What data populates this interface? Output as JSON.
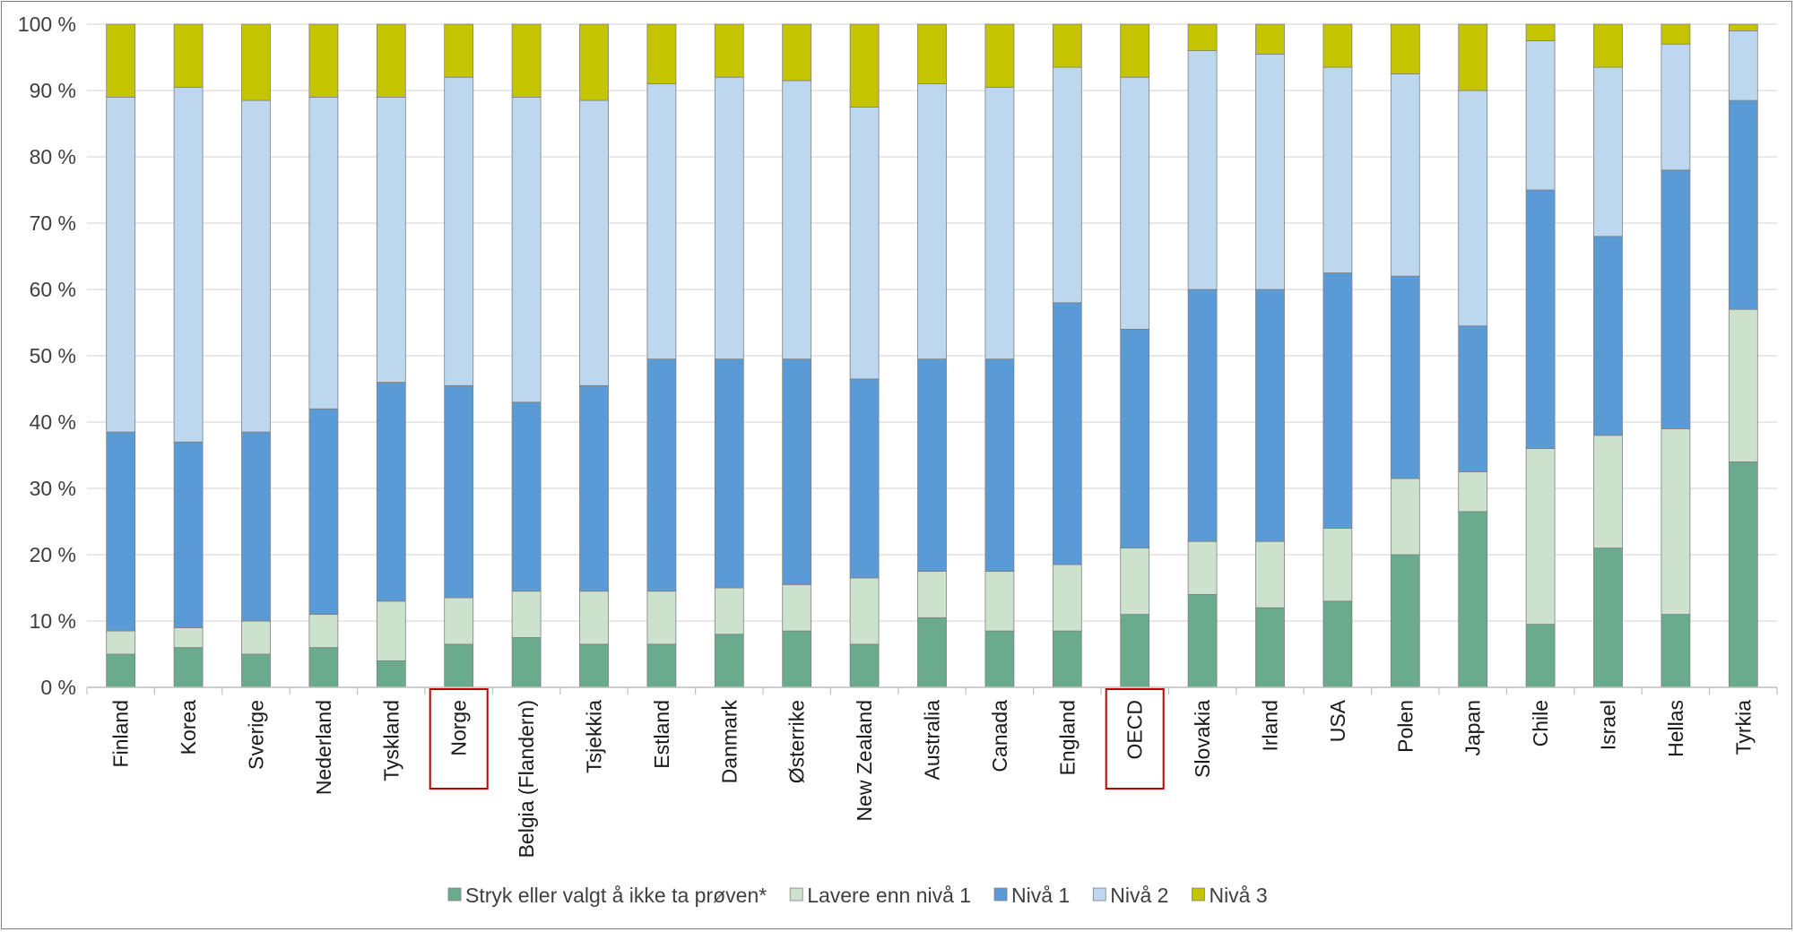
{
  "chart_data": {
    "type": "bar",
    "stacked": true,
    "percent_stacked": true,
    "title": "",
    "xlabel": "",
    "ylabel": "",
    "ylim": [
      0,
      100
    ],
    "y_ticks": [
      "0 %",
      "10 %",
      "20 %",
      "30 %",
      "40 %",
      "50 %",
      "60 %",
      "70 %",
      "80 %",
      "90 %",
      "100 %"
    ],
    "grid": "horizontal",
    "legend_position": "bottom",
    "highlighted_categories": [
      "Norge",
      "OECD"
    ],
    "highlight_color": "#c00000",
    "categories": [
      "Finland",
      "Korea",
      "Sverige",
      "Nederland",
      "Tyskland",
      "Norge",
      "Belgia (Flandern)",
      "Tsjekkia",
      "Estland",
      "Danmark",
      "Østerrike",
      "New Zealand",
      "Australia",
      "Canada",
      "England",
      "OECD",
      "Slovakia",
      "Irland",
      "USA",
      "Polen",
      "Japan",
      "Chile",
      "Israel",
      "Hellas",
      "Tyrkia"
    ],
    "series": [
      {
        "name": "Stryk eller valgt å ikke ta prøven*",
        "color": "#6aab8e",
        "values": [
          5,
          6,
          5,
          6,
          4,
          6.5,
          7.5,
          6.5,
          6.5,
          8,
          8.5,
          6.5,
          10.5,
          8.5,
          8.5,
          11,
          14,
          12,
          13,
          20,
          26.5,
          9.5,
          21,
          11,
          34
        ]
      },
      {
        "name": "Lavere enn nivå 1",
        "color": "#cde2cd",
        "values": [
          3.5,
          3,
          5,
          5,
          9,
          7,
          7,
          8,
          8,
          7,
          7,
          10,
          7,
          9,
          10,
          10,
          8,
          10,
          11,
          11.5,
          6,
          26.5,
          17,
          28,
          23
        ]
      },
      {
        "name": "Nivå 1",
        "color": "#5b9bd5",
        "values": [
          30,
          28,
          28.5,
          31,
          33,
          32,
          28.5,
          31,
          35,
          34.5,
          34,
          30,
          32,
          32,
          39.5,
          33,
          38,
          38,
          38.5,
          30.5,
          22,
          39,
          30,
          39,
          31.5
        ]
      },
      {
        "name": "Nivå 2",
        "color": "#bdd7ee",
        "values": [
          50.5,
          53.5,
          50,
          47,
          43,
          46.5,
          46,
          43,
          41.5,
          42.5,
          42,
          41,
          41.5,
          41,
          35.5,
          38,
          36,
          35.5,
          31,
          30.5,
          35.5,
          22.5,
          25.5,
          19,
          10.5
        ]
      },
      {
        "name": "Nivå 3",
        "color": "#c5c400",
        "values": [
          11,
          9.5,
          11.5,
          11,
          11,
          8,
          11,
          11.5,
          9,
          8,
          8.5,
          12.5,
          9,
          9.5,
          6.5,
          8,
          4,
          4.5,
          6.5,
          7.5,
          10,
          2.5,
          6.5,
          3,
          1
        ]
      }
    ]
  }
}
